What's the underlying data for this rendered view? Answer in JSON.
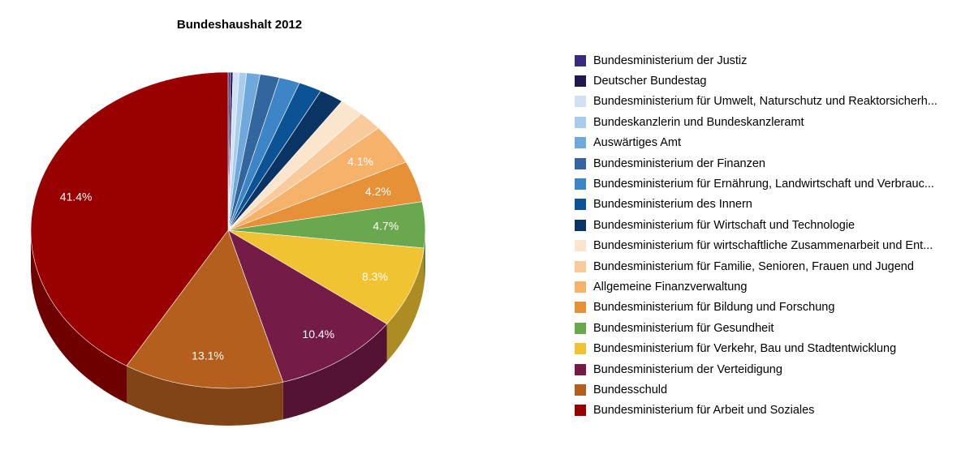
{
  "chart_data": {
    "type": "pie",
    "title": "Bundeshaushalt 2012",
    "legend_position": "right",
    "slices": [
      {
        "name": "Bundesministerium der Justiz",
        "value": 0.2,
        "color": "#3b2a7e",
        "label": ""
      },
      {
        "name": "Deutscher Bundestag",
        "value": 0.2,
        "color": "#1f1a4e",
        "label": ""
      },
      {
        "name": "Bundesministerium für Umwelt, Naturschutz und Reaktorsicherh...",
        "value": 0.5,
        "color": "#cfe1f3",
        "label": ""
      },
      {
        "name": "Bundeskanzlerin und Bundeskanzleramt",
        "value": 0.6,
        "color": "#a9cbee",
        "label": ""
      },
      {
        "name": "Auswärtiges Amt",
        "value": 1.1,
        "color": "#6fa8dc",
        "label": ""
      },
      {
        "name": "Bundesministerium der Finanzen",
        "value": 1.6,
        "color": "#33669e",
        "label": ""
      },
      {
        "name": "Bundesministerium für Ernährung, Landwirtschaft und Verbrauc...",
        "value": 1.7,
        "color": "#3d85c6",
        "label": ""
      },
      {
        "name": "Bundesministerium des Innern",
        "value": 1.9,
        "color": "#0b5394",
        "label": ""
      },
      {
        "name": "Bundesministerium für Wirtschaft und Technologie",
        "value": 2.0,
        "color": "#0a3463",
        "label": ""
      },
      {
        "name": "Bundesministerium für wirtschaftliche Zusammenarbeit und Ent...",
        "value": 2.0,
        "color": "#fce5cd",
        "label": ""
      },
      {
        "name": "Bundesministerium für Familie, Senioren, Frauen und Jugend",
        "value": 2.0,
        "color": "#f9cb9c",
        "label": ""
      },
      {
        "name": "Allgemeine Finanzverwaltung",
        "value": 4.1,
        "color": "#f6b26b",
        "label": "4.1%"
      },
      {
        "name": "Bundesministerium für Bildung und Forschung",
        "value": 4.2,
        "color": "#e69138",
        "label": "4.2%"
      },
      {
        "name": "Bundesministerium für Gesundheit",
        "value": 4.7,
        "color": "#6aa84f",
        "label": "4.7%"
      },
      {
        "name": "Bundesministerium für Verkehr, Bau und Stadtentwicklung",
        "value": 8.3,
        "color": "#f1c232",
        "label": "8.3%"
      },
      {
        "name": "Bundesministerium der Verteidigung",
        "value": 10.4,
        "color": "#741b47",
        "label": "10.4%"
      },
      {
        "name": "Bundesschuld",
        "value": 13.1,
        "color": "#b45f1e",
        "label": "13.1%"
      },
      {
        "name": "Bundesministerium für Arbeit und Soziales",
        "value": 41.4,
        "color": "#990000",
        "label": "41.4%"
      }
    ]
  }
}
